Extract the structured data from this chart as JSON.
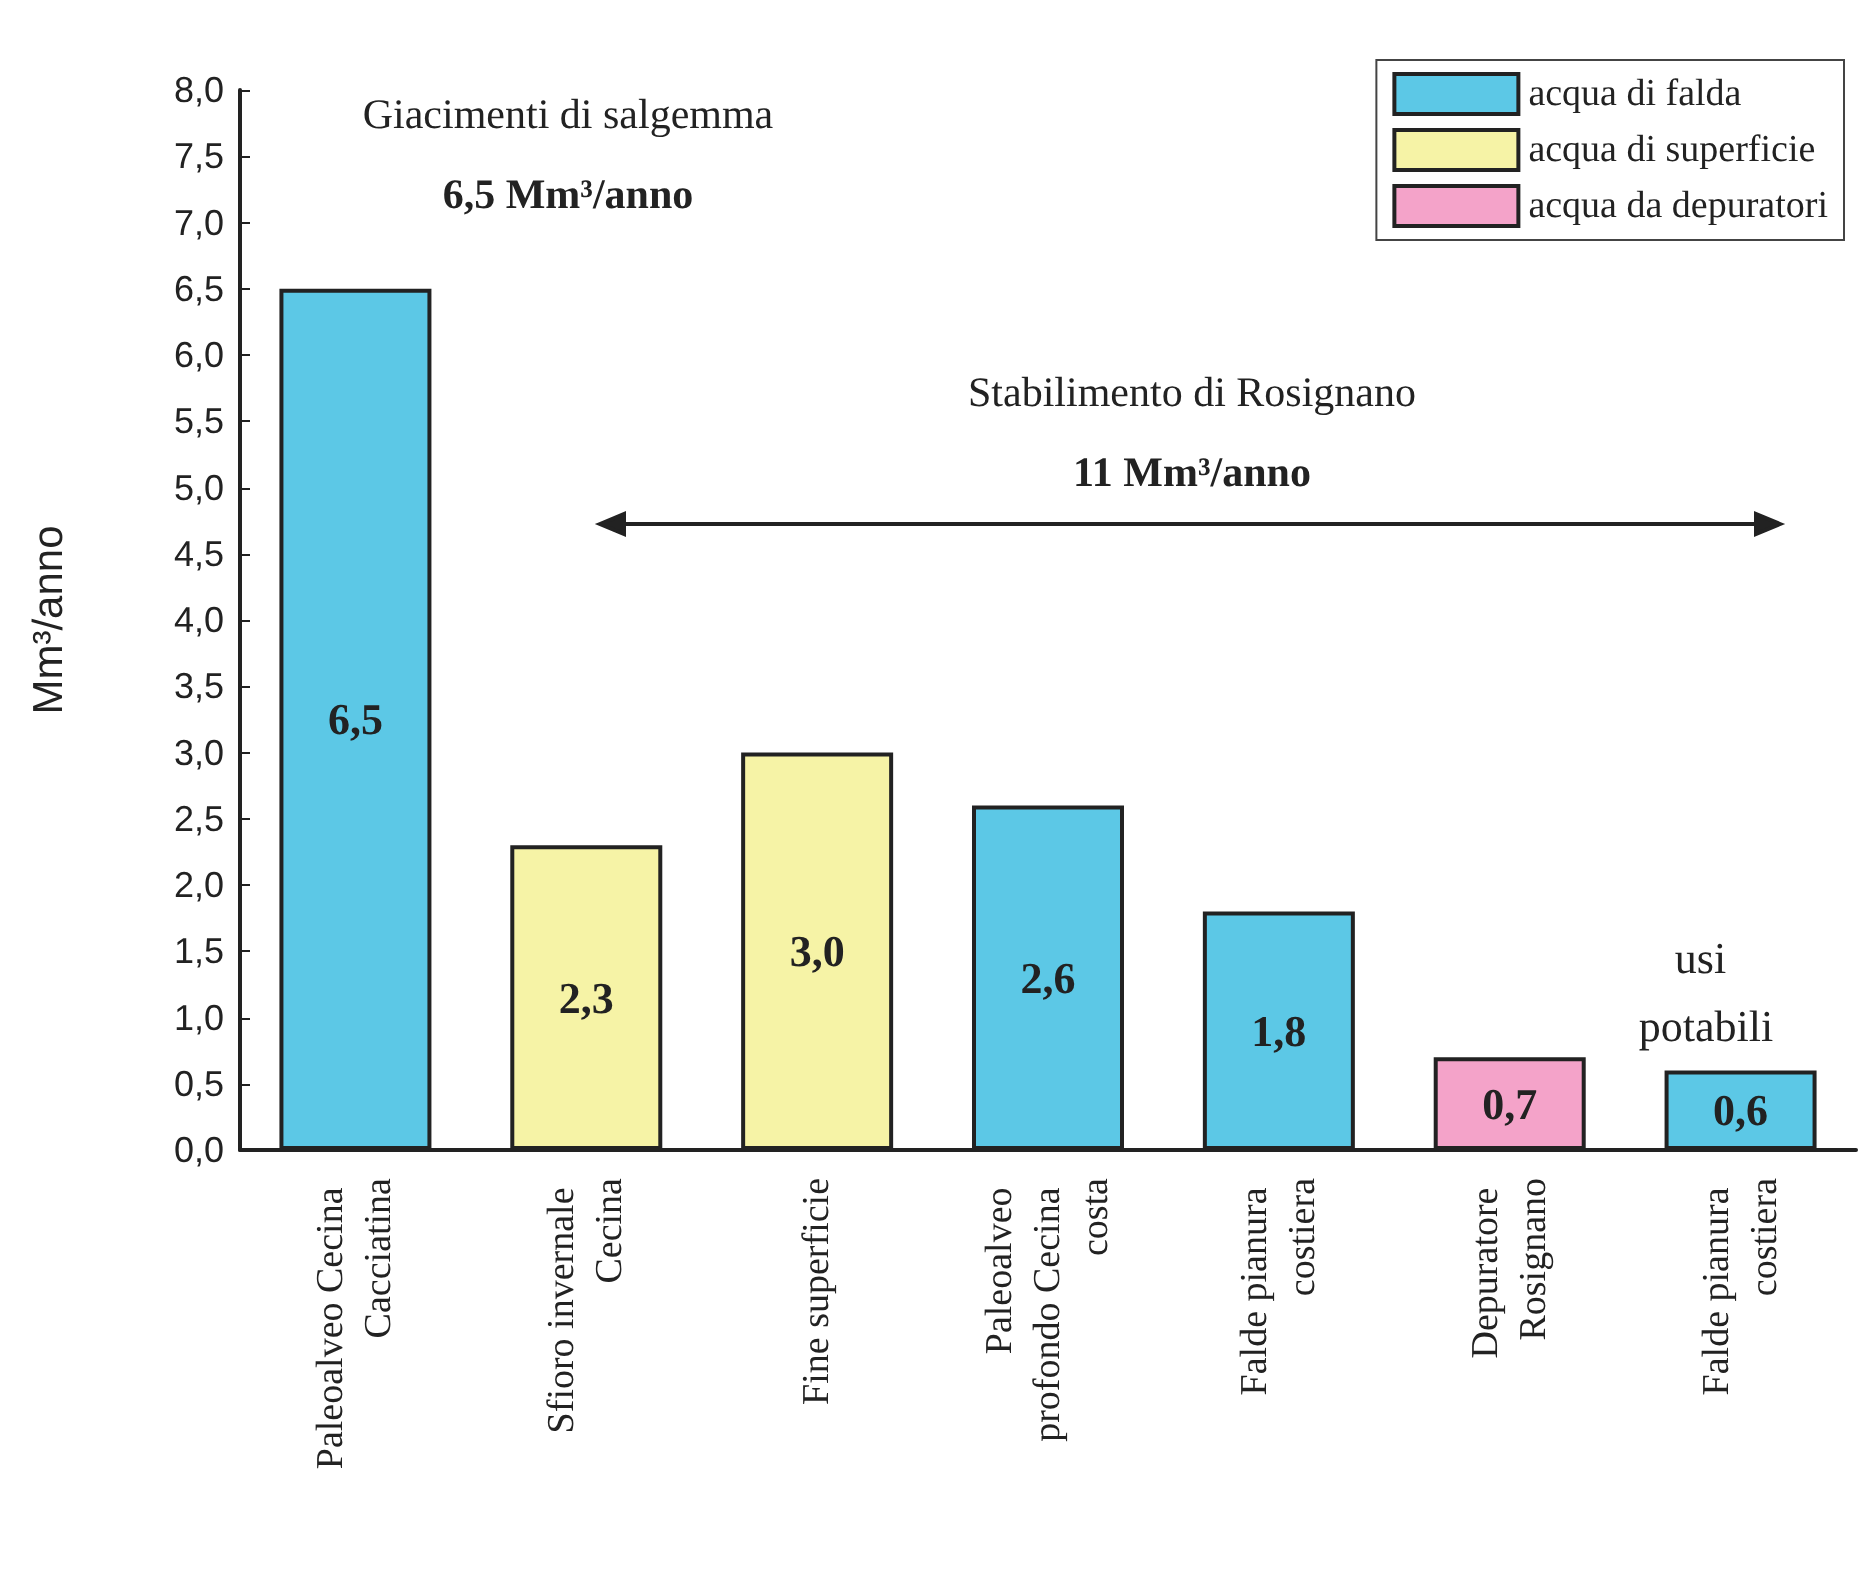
{
  "chart_data": {
    "type": "bar",
    "ylabel": "Mm³/anno",
    "categories": [
      "Paleoalveo Cecina Cacciatina",
      "Sfioro invernale Cecina",
      "Fine superficie",
      "Paleoalveo profondo Cecina costa",
      "Falde pianura costiera",
      "Depuratore Rosignano",
      "Falde pianura costiera"
    ],
    "stacked": true,
    "series": [
      {
        "name": "acqua di falda",
        "color": "#5cc8e6",
        "values": [
          6.5,
          null,
          null,
          2.6,
          1.8,
          null,
          0.6
        ],
        "value_labels": [
          "6,5",
          null,
          null,
          "2,6",
          "1,8",
          null,
          "0,6"
        ]
      },
      {
        "name": "acqua di superficie",
        "color": "#f6f3a6",
        "values": [
          null,
          2.3,
          3.0,
          null,
          null,
          null,
          null
        ],
        "value_labels": [
          null,
          "2,3",
          "3,0",
          null,
          null,
          null,
          null
        ]
      },
      {
        "name": "acqua da depuratori",
        "color": "#f4a3c9",
        "values": [
          null,
          null,
          null,
          null,
          null,
          0.7,
          null
        ],
        "value_labels": [
          null,
          null,
          null,
          null,
          null,
          "0,7",
          null
        ]
      }
    ],
    "ylim": [
      0,
      8
    ],
    "yticks": [
      {
        "value": 0,
        "label": "0,0"
      },
      {
        "value": 0.5,
        "label": "0,5"
      },
      {
        "value": 1,
        "label": "1,0"
      },
      {
        "value": 1.5,
        "label": "1,5"
      },
      {
        "value": 2,
        "label": "2,0"
      },
      {
        "value": 2.5,
        "label": "2,5"
      },
      {
        "value": 3,
        "label": "3,0"
      },
      {
        "value": 3.5,
        "label": "3,5"
      },
      {
        "value": 4,
        "label": "4,0"
      },
      {
        "value": 4.5,
        "label": "4,5"
      },
      {
        "value": 5,
        "label": "5,0"
      },
      {
        "value": 5.5,
        "label": "5,5"
      },
      {
        "value": 6,
        "label": "6,0"
      },
      {
        "value": 6.5,
        "label": "6,5"
      },
      {
        "value": 7,
        "label": "7,0"
      },
      {
        "value": 7.5,
        "label": "7,5"
      },
      {
        "value": 8,
        "label": "8,0"
      }
    ],
    "grid": false,
    "legend": "top right",
    "annotations": [
      "Giacimenti di salgemma",
      "6,5 Mm³/anno",
      "Stabilimento di Rosignano",
      "11 Mm³/anno",
      "usi potabili"
    ]
  }
}
